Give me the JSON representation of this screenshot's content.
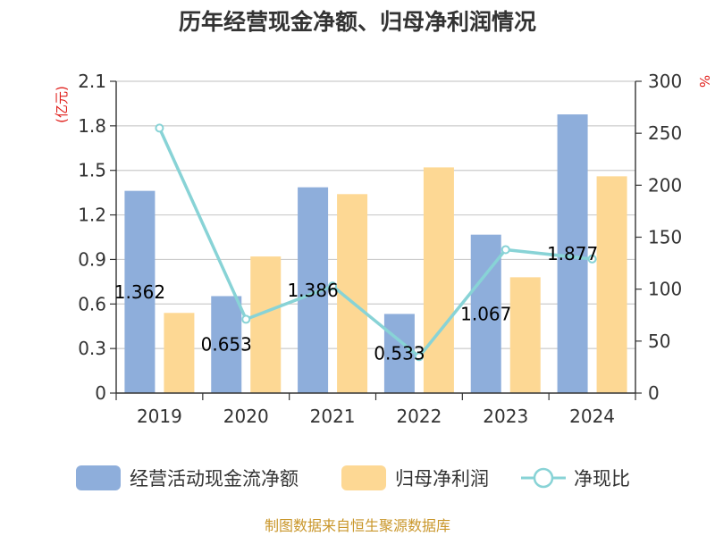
{
  "chart_data": {
    "type": "bar",
    "title": "历年经营现金净额、归母净利润情况",
    "categories": [
      "2019",
      "2020",
      "2021",
      "2022",
      "2023",
      "2024"
    ],
    "y_left": {
      "unit": "(亿元)",
      "min": 0,
      "max": 2.1,
      "ticks": [
        "0",
        "0.3",
        "0.6",
        "0.9",
        "1.2",
        "1.5",
        "1.8",
        "2.1"
      ]
    },
    "y_right": {
      "unit": "%",
      "min": 0,
      "max": 300,
      "ticks": [
        "0",
        "50",
        "100",
        "150",
        "200",
        "250",
        "300"
      ]
    },
    "series": [
      {
        "name": "经营活动现金流净额",
        "type": "bar",
        "axis": "left",
        "color": "#8eaedb",
        "values": [
          1.362,
          0.653,
          1.386,
          0.533,
          1.067,
          1.877
        ],
        "labels": [
          "1.362",
          "0.653",
          "1.386",
          "0.533",
          "1.067",
          "1.877"
        ]
      },
      {
        "name": "归母净利润",
        "type": "bar",
        "axis": "left",
        "color": "#fdd894",
        "values": [
          0.54,
          0.92,
          1.34,
          1.52,
          0.78,
          1.46
        ]
      },
      {
        "name": "净现比",
        "type": "line",
        "axis": "right",
        "color": "#88d3d6",
        "values": [
          255,
          71,
          103,
          35,
          138,
          129
        ]
      }
    ],
    "legend_position": "bottom",
    "grid": true
  },
  "source": "制图数据来自恒生聚源数据库"
}
